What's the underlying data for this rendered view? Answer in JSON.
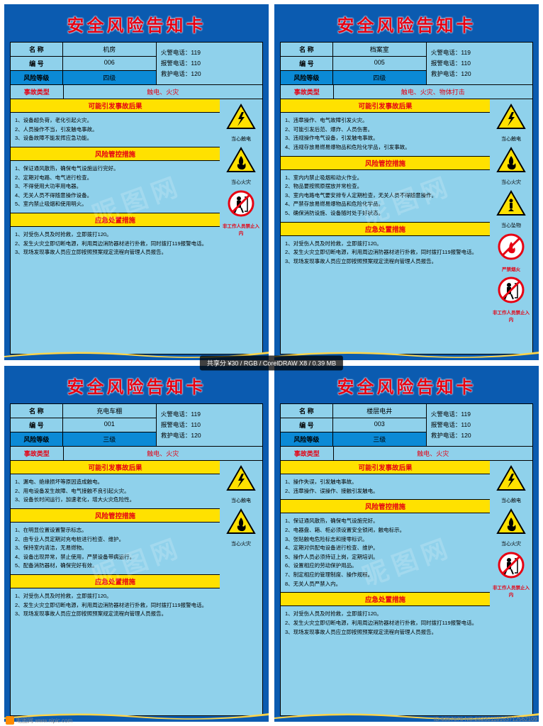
{
  "colors": {
    "frame": "#0b5bb0",
    "inner": "#8fd1eb",
    "title": "#e60012",
    "yellow": "#ffe100",
    "risk_hl": "#0b8ad6",
    "red": "#e60012"
  },
  "title": "安全风险告知卡",
  "labels": {
    "name": "名  称",
    "code": "编  号",
    "risk": "风险等级",
    "accident": "事故类型",
    "fire": "火警电话：",
    "police": "报警电话：",
    "rescue": "救护电话："
  },
  "phones": {
    "fire": "119",
    "police": "110",
    "rescue": "120"
  },
  "sections": {
    "consequence": "可能引发事故后果",
    "control": "风险管控措施",
    "emergency": "应急处置措施"
  },
  "watermark": "昵图网",
  "footer": {
    "site": "昵图网 www.nipic.com",
    "id": "ID:6357676 NO:20230118163712562109"
  },
  "tooltip": "共享分 ¥30 / RGB / CorelDRAW X8 / 0.39 MB",
  "icon_labels": {
    "shock": "当心触电",
    "fire": "当心火灾",
    "fall": "当心坠物",
    "noflame": "严禁烟火",
    "noentry": "非工作人员禁止入内"
  },
  "cards": [
    {
      "name": "机房",
      "code": "006",
      "risk": "四级",
      "accident": "触电、火灾",
      "consequence": [
        "1、设备超负荷，老化引起火灾。",
        "2、人员操作不当，引发触电事故。",
        "3、设备故障不能发挥应急功能。"
      ],
      "control": [
        "1、保证通风散热，确保电气设施运行完好。",
        "2、定期对电路、电气进行检查。",
        "3、不得使用大功率用电器。",
        "4、无关人员不得随意操作设备。",
        "5、室内禁止吸烟和使用明火。"
      ],
      "emergency": [
        "1、对受伤人员及时抢救，立即拨打120。",
        "2、发生火灾立即切断电源，利用周边消防器材进行扑救，同时拨打119报警电话。",
        "3、现场发现事故人员应立即按照预案规定流程向管理人员报告。"
      ],
      "icons": [
        "shock",
        "fire"
      ],
      "prohibs": [
        "noentry"
      ]
    },
    {
      "name": "档案室",
      "code": "005",
      "risk": "四级",
      "accident": "触电、火灾、物体打击",
      "consequence": [
        "1、违章操作、电气故障引发火灾。",
        "2、可能引发后范、爆炸、人员伤害。",
        "3、违规操作电气设备，引发触电事故。",
        "4、违规存放易燃易爆物品和危险化学品，引发事故。"
      ],
      "control": [
        "1、室内内禁止吸烟和动火作业。",
        "2、物品要按照原摆放并常检查。",
        "3、室内电路电气要安排专人定期检查，无关人员不得随意操作。",
        "4、严禁存放易燃易爆物品和危险化学品。",
        "5、确保消防设施、设备随时处于好状态。"
      ],
      "emergency": [
        "1、对受伤人员及时抢救，立即拨打120。",
        "2、发生火灾立即切断电源，利用周边消防器材进行扑救，同时拨打119报警电话。",
        "3、现场发现事故人员应立即按照预案规定流程向管理人员报告。"
      ],
      "icons": [
        "shock",
        "fire",
        "fall"
      ],
      "prohibs": [
        "noflame",
        "noentry"
      ]
    },
    {
      "name": "充电车棚",
      "code": "001",
      "risk": "三级",
      "accident": "触电、火灾",
      "consequence": [
        "1、漏电、绝缘损坏等原因造成触电。",
        "2、用电设备发生故障、电气接触不良引起火灾。",
        "3、设备长时间运行，加速老化，增大火灾危险性。"
      ],
      "control": [
        "1、在明显位置设置警示标志。",
        "2、由专业人员定期对充电桩进行检查、维护。",
        "3、保持室内清洁，无易燃物。",
        "4、设备出现异常，禁止使用，严禁设备带病运行。",
        "5、配备消防器材，确保完好有效。"
      ],
      "emergency": [
        "1、对受伤人员及时抢救，立即拨打120。",
        "2、发生火灾立即切断电源，利用周边消防器材进行扑救，同时拨打119报警电话。",
        "3、现场发现事故人员应立即按照预案规定流程向管理人员报告。"
      ],
      "icons": [
        "shock",
        "fire"
      ],
      "prohibs": []
    },
    {
      "name": "楼层电井",
      "code": "003",
      "risk": "三级",
      "accident": "触电、火灾",
      "consequence": [
        "1、操作失误，引发触电事故。",
        "2、违章操作、误操作、接触引发触电。"
      ],
      "control": [
        "1、保证通风散热，确保电气设施完好。",
        "2、电器盘、箱、柜必须设置安全锁闭，触电标示。",
        "3、张贴触电危险标志和接零标识。",
        "4、定期对供配电设备进行检查、维护。",
        "5、操作人员必须持证上岗，定期培训。",
        "6、设置相应的劳动保护用品。",
        "7、制定相应的管理制度、操作规程。",
        "8、无关人员严禁入内。"
      ],
      "emergency": [
        "1、对受伤人员及时抢救，立即拨打120。",
        "2、发生火灾立即切断电源，利用周边消防器材进行扑救，同时拨打119报警电话。",
        "3、现场发现事故人员应立即按照预案规定流程向管理人员报告。"
      ],
      "icons": [
        "shock",
        "fire"
      ],
      "prohibs": [
        "noentry"
      ]
    }
  ]
}
